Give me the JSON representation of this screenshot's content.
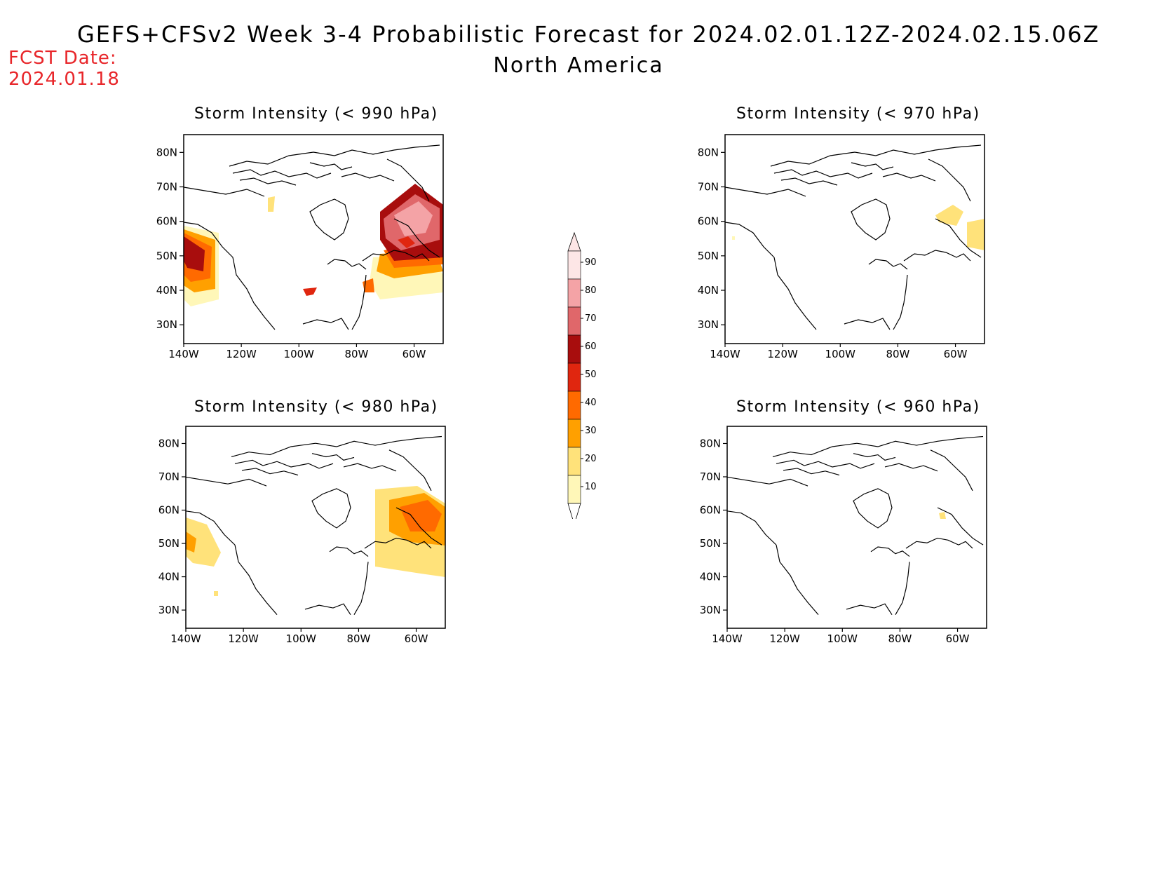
{
  "header": {
    "title": "GEFS+CFSv2 Week 3-4 Probabilistic Forecast for 2024.02.01.12Z-2024.02.15.06Z",
    "region": "North America",
    "fcst_label": "FCST Date:",
    "fcst_date": "2024.01.18"
  },
  "axes": {
    "lat_labels": [
      "80N",
      "70N",
      "60N",
      "50N",
      "40N",
      "30N"
    ],
    "lon_labels": [
      "140W",
      "120W",
      "100W",
      "80W",
      "60W"
    ]
  },
  "panels": [
    {
      "id": "p990",
      "title": "Storm Intensity (< 990 hPa)"
    },
    {
      "id": "p970",
      "title": "Storm Intensity (< 970 hPa)"
    },
    {
      "id": "p980",
      "title": "Storm Intensity (< 980 hPa)"
    },
    {
      "id": "p960",
      "title": "Storm Intensity (< 960 hPa)"
    }
  ],
  "colorbar": {
    "labels": [
      "90",
      "80",
      "70",
      "60",
      "50",
      "40",
      "30",
      "20",
      "10"
    ],
    "colors": [
      "#fde6e6",
      "#f4a3a6",
      "#e0676a",
      "#a80d0d",
      "#e0260f",
      "#ff6a00",
      "#ffa000",
      "#ffe27a",
      "#fff7b8"
    ]
  },
  "legend_colors": {
    "p10": "#fff7b8",
    "p20": "#ffe27a",
    "p30": "#ffa000",
    "p40": "#ff6a00",
    "p50": "#e0260f",
    "p60": "#a80d0d",
    "p70": "#e0676a",
    "p80": "#f4a3a6",
    "p90": "#fde6e6"
  }
}
